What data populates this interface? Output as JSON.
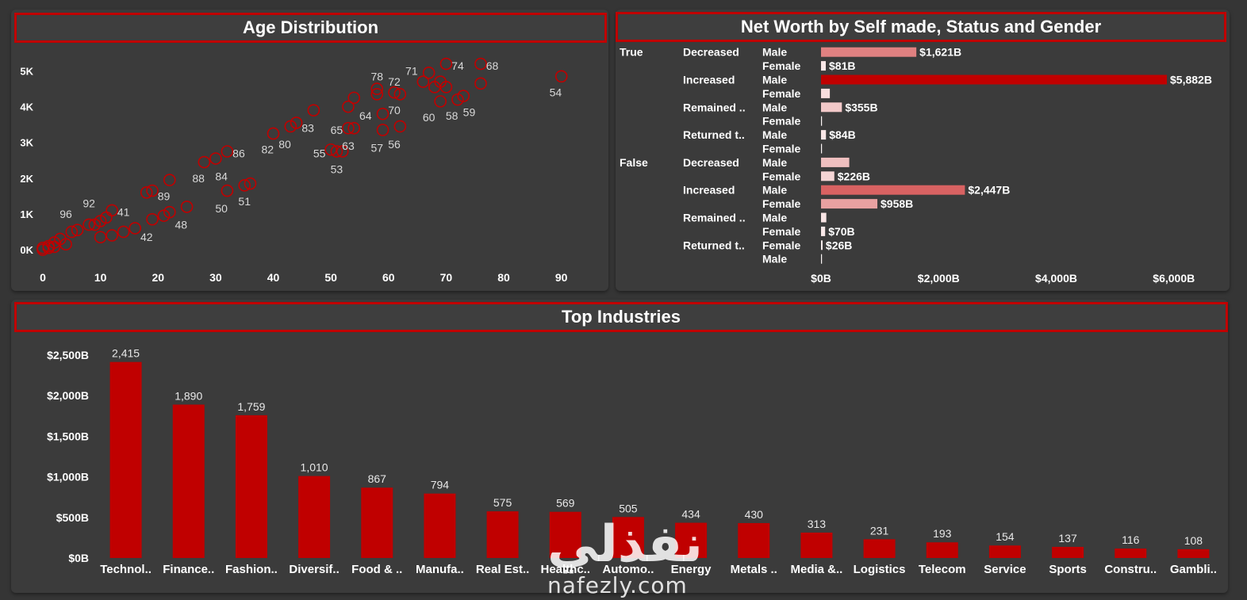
{
  "charts": {
    "age": {
      "title": "Age Distribution",
      "chart_data": {
        "type": "scatter",
        "title": "Age Distribution",
        "xlim": [
          0,
          95
        ],
        "ylim": [
          0,
          5500
        ],
        "x_ticks": [
          "0",
          "10",
          "20",
          "30",
          "40",
          "50",
          "60",
          "70",
          "80",
          "90"
        ],
        "y_ticks": [
          "0K",
          "1K",
          "2K",
          "3K",
          "4K",
          "5K"
        ],
        "grid": false,
        "marker_color": "#c00000",
        "points": [
          {
            "x": 0,
            "y": 0
          },
          {
            "x": 1,
            "y": 100
          },
          {
            "x": 2,
            "y": 200
          },
          {
            "x": 3,
            "y": 300
          },
          {
            "x": 0,
            "y": 50
          },
          {
            "x": 1,
            "y": 50
          },
          {
            "x": 2,
            "y": 80
          },
          {
            "x": 4,
            "y": 150
          },
          {
            "x": 5,
            "y": 500
          },
          {
            "x": 6,
            "y": 550
          },
          {
            "x": 8,
            "y": 700
          },
          {
            "x": 9,
            "y": 700
          },
          {
            "x": 10,
            "y": 800
          },
          {
            "x": 11,
            "y": 900
          },
          {
            "x": 12,
            "y": 1100
          },
          {
            "x": 10,
            "y": 350
          },
          {
            "x": 12,
            "y": 400
          },
          {
            "x": 14,
            "y": 500
          },
          {
            "x": 16,
            "y": 600
          },
          {
            "x": 18,
            "y": 1600
          },
          {
            "x": 19,
            "y": 1650
          },
          {
            "x": 19,
            "y": 850
          },
          {
            "x": 21,
            "y": 950
          },
          {
            "x": 22,
            "y": 1050
          },
          {
            "x": 22,
            "y": 1950
          },
          {
            "x": 25,
            "y": 1200
          },
          {
            "x": 28,
            "y": 2450
          },
          {
            "x": 30,
            "y": 2550
          },
          {
            "x": 32,
            "y": 1650
          },
          {
            "x": 32,
            "y": 2750
          },
          {
            "x": 35,
            "y": 1800
          },
          {
            "x": 36,
            "y": 1850
          },
          {
            "x": 40,
            "y": 3250
          },
          {
            "x": 43,
            "y": 3450
          },
          {
            "x": 44,
            "y": 3550
          },
          {
            "x": 47,
            "y": 3900
          },
          {
            "x": 50,
            "y": 2800
          },
          {
            "x": 51,
            "y": 2750
          },
          {
            "x": 52,
            "y": 2750
          },
          {
            "x": 53,
            "y": 3400
          },
          {
            "x": 53,
            "y": 4000
          },
          {
            "x": 54,
            "y": 4250
          },
          {
            "x": 54,
            "y": 3400
          },
          {
            "x": 58,
            "y": 4350
          },
          {
            "x": 58,
            "y": 4500
          },
          {
            "x": 59,
            "y": 3800
          },
          {
            "x": 59,
            "y": 3350
          },
          {
            "x": 61,
            "y": 4400
          },
          {
            "x": 62,
            "y": 4350
          },
          {
            "x": 62,
            "y": 3450
          },
          {
            "x": 66,
            "y": 4700
          },
          {
            "x": 67,
            "y": 4950
          },
          {
            "x": 68,
            "y": 4550
          },
          {
            "x": 69,
            "y": 4700
          },
          {
            "x": 69,
            "y": 4150
          },
          {
            "x": 70,
            "y": 5200
          },
          {
            "x": 70,
            "y": 4550
          },
          {
            "x": 72,
            "y": 4200
          },
          {
            "x": 73,
            "y": 4300
          },
          {
            "x": 76,
            "y": 5200
          },
          {
            "x": 76,
            "y": 4650
          },
          {
            "x": 90,
            "y": 4850
          }
        ],
        "labels": [
          {
            "text": "96",
            "x": 4,
            "y": 1000
          },
          {
            "text": "92",
            "x": 8,
            "y": 1300
          },
          {
            "text": "41",
            "x": 14,
            "y": 1050
          },
          {
            "text": "42",
            "x": 18,
            "y": 350
          },
          {
            "text": "89",
            "x": 21,
            "y": 1500
          },
          {
            "text": "48",
            "x": 24,
            "y": 700
          },
          {
            "text": "88",
            "x": 27,
            "y": 2000
          },
          {
            "text": "84",
            "x": 31,
            "y": 2050
          },
          {
            "text": "86",
            "x": 34,
            "y": 2700
          },
          {
            "text": "50",
            "x": 31,
            "y": 1150
          },
          {
            "text": "51",
            "x": 35,
            "y": 1350
          },
          {
            "text": "82",
            "x": 39,
            "y": 2800
          },
          {
            "text": "80",
            "x": 42,
            "y": 2950
          },
          {
            "text": "83",
            "x": 46,
            "y": 3400
          },
          {
            "text": "55",
            "x": 48,
            "y": 2700
          },
          {
            "text": "65",
            "x": 51,
            "y": 3350
          },
          {
            "text": "53",
            "x": 51,
            "y": 2250
          },
          {
            "text": "63",
            "x": 53,
            "y": 2900
          },
          {
            "text": "64",
            "x": 56,
            "y": 3750
          },
          {
            "text": "57",
            "x": 58,
            "y": 2850
          },
          {
            "text": "56",
            "x": 61,
            "y": 2950
          },
          {
            "text": "78",
            "x": 58,
            "y": 4850
          },
          {
            "text": "72",
            "x": 61,
            "y": 4700
          },
          {
            "text": "70",
            "x": 61,
            "y": 3900
          },
          {
            "text": "71",
            "x": 64,
            "y": 5000
          },
          {
            "text": "74",
            "x": 72,
            "y": 5150
          },
          {
            "text": "68",
            "x": 78,
            "y": 5150
          },
          {
            "text": "60",
            "x": 67,
            "y": 3700
          },
          {
            "text": "58",
            "x": 71,
            "y": 3750
          },
          {
            "text": "59",
            "x": 74,
            "y": 3850
          },
          {
            "text": "54",
            "x": 89,
            "y": 4400
          }
        ]
      }
    },
    "networth": {
      "title": "Net Worth by Self made, Status and Gender",
      "chart_data": {
        "type": "bar",
        "orientation": "horizontal",
        "title": "Net Worth by Self made, Status and Gender",
        "xlim": [
          0,
          6300
        ],
        "x_ticks": [
          {
            "label": "$0B",
            "value": 0
          },
          {
            "label": "$2,000B",
            "value": 2000
          },
          {
            "label": "$4,000B",
            "value": 4000
          },
          {
            "label": "$6,000B",
            "value": 6000
          }
        ],
        "max_color": "#c00000",
        "min_color": "#ffffff",
        "rows": [
          {
            "self_made": "True",
            "status": "Decreased",
            "gender": "Male",
            "value": 1621,
            "label": "$1,621B"
          },
          {
            "self_made": "",
            "status": "",
            "gender": "Female",
            "value": 81,
            "label": "$81B"
          },
          {
            "self_made": "",
            "status": "Increased",
            "gender": "Male",
            "value": 5882,
            "label": "$5,882B"
          },
          {
            "self_made": "",
            "status": "",
            "gender": "Female",
            "value": 150,
            "label": ""
          },
          {
            "self_made": "",
            "status": "Remained ..",
            "gender": "Male",
            "value": 355,
            "label": "$355B"
          },
          {
            "self_made": "",
            "status": "",
            "gender": "Female",
            "value": 12,
            "label": ""
          },
          {
            "self_made": "",
            "status": "Returned t..",
            "gender": "Male",
            "value": 84,
            "label": "$84B"
          },
          {
            "self_made": "",
            "status": "",
            "gender": "Female",
            "value": 10,
            "label": ""
          },
          {
            "self_made": "False",
            "status": "Decreased",
            "gender": "Male",
            "value": 480,
            "label": ""
          },
          {
            "self_made": "",
            "status": "",
            "gender": "Female",
            "value": 226,
            "label": "$226B"
          },
          {
            "self_made": "",
            "status": "Increased",
            "gender": "Male",
            "value": 2447,
            "label": "$2,447B"
          },
          {
            "self_made": "",
            "status": "",
            "gender": "Female",
            "value": 958,
            "label": "$958B"
          },
          {
            "self_made": "",
            "status": "Remained ..",
            "gender": "Male",
            "value": 90,
            "label": ""
          },
          {
            "self_made": "",
            "status": "",
            "gender": "Female",
            "value": 70,
            "label": "$70B"
          },
          {
            "self_made": "",
            "status": "Returned t..",
            "gender": "Female",
            "value": 26,
            "label": "$26B"
          },
          {
            "self_made": "",
            "status": "",
            "gender": "Male",
            "value": 10,
            "label": ""
          }
        ]
      }
    },
    "industries": {
      "title": "Top Industries",
      "chart_data": {
        "type": "bar",
        "title": "Top Industries",
        "ylim": [
          0,
          2600
        ],
        "y_ticks": [
          {
            "label": "$0B",
            "value": 0
          },
          {
            "label": "$500B",
            "value": 500
          },
          {
            "label": "$1,000B",
            "value": 1000
          },
          {
            "label": "$1,500B",
            "value": 1500
          },
          {
            "label": "$2,000B",
            "value": 2000
          },
          {
            "label": "$2,500B",
            "value": 2500
          }
        ],
        "bar_color": "#c00000",
        "categories": [
          "Technol..",
          "Finance..",
          "Fashion..",
          "Diversif..",
          "Food & ..",
          "Manufa..",
          "Real Est..",
          "Healthc..",
          "Automo..",
          "Energy",
          "Metals ..",
          "Media &..",
          "Logistics",
          "Telecom",
          "Service",
          "Sports",
          "Constru..",
          "Gambli.."
        ],
        "values": [
          2415,
          1890,
          1759,
          1010,
          867,
          794,
          575,
          569,
          505,
          434,
          430,
          313,
          231,
          193,
          154,
          137,
          116,
          108
        ],
        "value_labels": [
          "2,415",
          "1,890",
          "1,759",
          "1,010",
          "867",
          "794",
          "575",
          "569",
          "505",
          "434",
          "430",
          "313",
          "231",
          "193",
          "154",
          "137",
          "116",
          "108"
        ]
      }
    }
  },
  "watermark": {
    "arabic": "نفذلي",
    "latin": "nafezly.com"
  }
}
